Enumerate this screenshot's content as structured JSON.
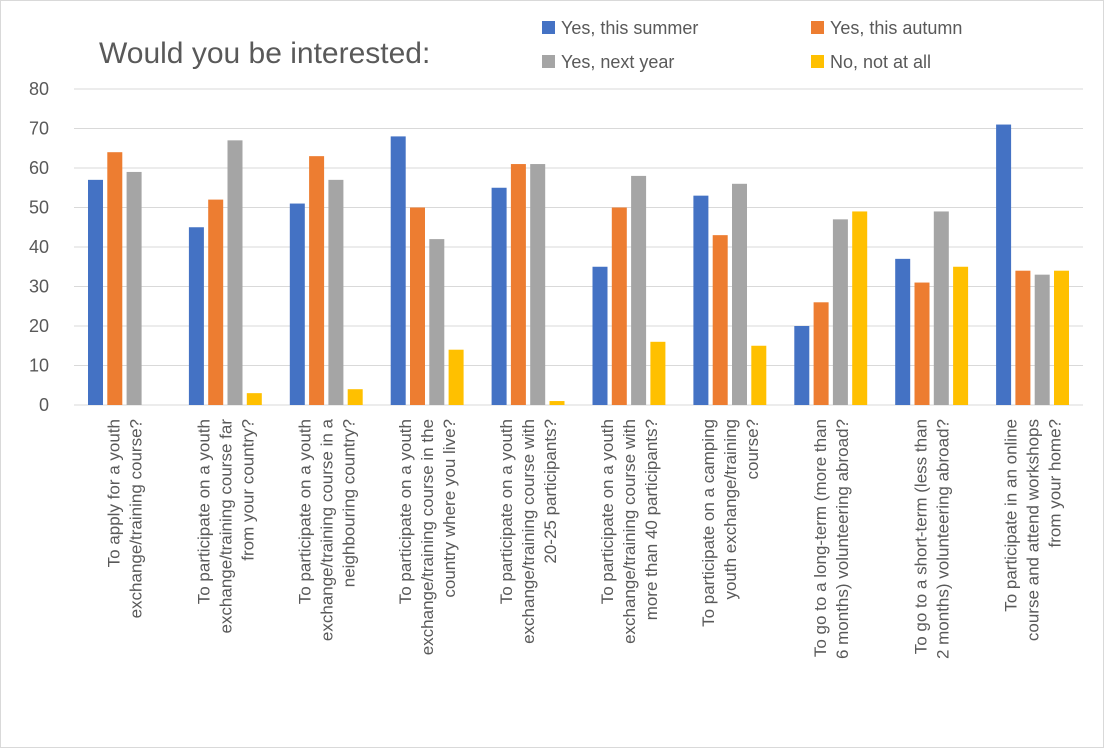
{
  "chart_data": {
    "type": "bar",
    "title": "Would you be interested:",
    "categories": [
      [
        "To apply for a youth",
        "exchange/training course?"
      ],
      [
        "To participate on a youth",
        "exchange/training course far",
        "from your country?"
      ],
      [
        "To participate on a youth",
        "exchange/training course in a",
        "neighbouring country?"
      ],
      [
        "To participate on a youth",
        "exchange/training course in the",
        "country where you live?"
      ],
      [
        "To participate on a youth",
        "exchange/training course with",
        "20-25 participants?"
      ],
      [
        "To participate on a youth",
        "exchange/training course with",
        "more than 40 participants?"
      ],
      [
        "To participate on a camping",
        "youth  exchange/training",
        "course?"
      ],
      [
        "To go to a long-term (more than",
        "6 months) volunteering abroad?"
      ],
      [
        "To go to a short-term (less than",
        "2 months) volunteering abroad?"
      ],
      [
        "To participate in an online",
        "course and attend workshops",
        "from your home?"
      ]
    ],
    "series": [
      {
        "name": "Yes, this summer",
        "color": "#4472c4",
        "values": [
          57,
          45,
          51,
          68,
          55,
          35,
          53,
          20,
          37,
          71
        ]
      },
      {
        "name": "Yes, this autumn",
        "color": "#ed7d31",
        "values": [
          64,
          52,
          63,
          50,
          61,
          50,
          43,
          26,
          31,
          34
        ]
      },
      {
        "name": "Yes, next year",
        "color": "#a5a5a5",
        "values": [
          59,
          67,
          57,
          42,
          61,
          58,
          56,
          47,
          49,
          33
        ]
      },
      {
        "name": "No, not at all",
        "color": "#ffc000",
        "values": [
          0,
          3,
          4,
          14,
          1,
          16,
          15,
          49,
          35,
          34
        ]
      }
    ],
    "ylim": [
      0,
      80
    ],
    "yticks": [
      0,
      10,
      20,
      30,
      40,
      50,
      60,
      70,
      80
    ],
    "grid": true,
    "legend_position": "top-right"
  }
}
